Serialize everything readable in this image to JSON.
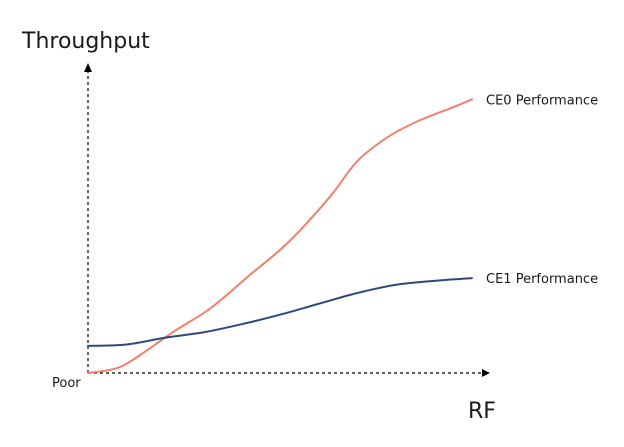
{
  "chart_data": {
    "type": "line",
    "title": "",
    "xlabel": "RF",
    "ylabel": "Throughput",
    "x_tick_labels": [],
    "y_tick_labels": [],
    "origin_label": "Poor",
    "xlim": [
      0,
      100
    ],
    "ylim": [
      0,
      100
    ],
    "grid": false,
    "legend": "inline-end-of-line",
    "axis_style": "dashed-arrows",
    "series": [
      {
        "name": "CE0 Performance",
        "color": "#f08070",
        "x": [
          0,
          8,
          15,
          22,
          32,
          42,
          52,
          63,
          70,
          78,
          86,
          95,
          100
        ],
        "y": [
          0,
          2,
          8,
          15,
          24,
          36,
          48,
          65,
          78,
          87,
          93,
          98,
          101
        ]
      },
      {
        "name": "CE1 Performance",
        "color": "#2e4a7d",
        "x": [
          0,
          10,
          20,
          30,
          40,
          50,
          60,
          70,
          80,
          90,
          100
        ],
        "y": [
          10,
          10.5,
          13,
          15,
          18,
          21.5,
          25.5,
          29.5,
          32.5,
          34,
          35
        ]
      }
    ]
  }
}
